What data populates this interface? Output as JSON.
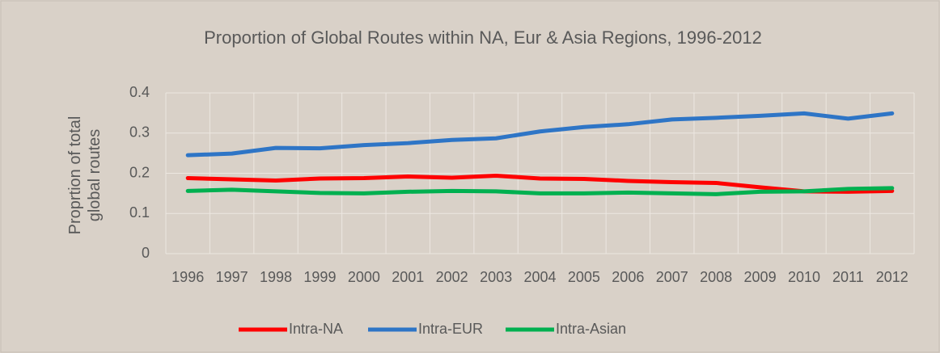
{
  "chart_data": {
    "type": "line",
    "title": "Proportion of Global Routes within NA, Eur & Asia Regions, 1996-2012",
    "y_label": "Proprtion of total global routes",
    "categories": [
      "1996",
      "1997",
      "1998",
      "1999",
      "2000",
      "2001",
      "2002",
      "2003",
      "2004",
      "2005",
      "2006",
      "2007",
      "2008",
      "2009",
      "2010",
      "2011",
      "2012"
    ],
    "series": [
      {
        "name": "Intra-NA",
        "color": "#ff0000",
        "values": [
          0.188,
          0.185,
          0.182,
          0.187,
          0.188,
          0.192,
          0.189,
          0.194,
          0.187,
          0.186,
          0.181,
          0.178,
          0.176,
          0.165,
          0.155,
          0.154,
          0.156
        ]
      },
      {
        "name": "Intra-EUR",
        "color": "#2e75c6",
        "values": [
          0.245,
          0.249,
          0.263,
          0.262,
          0.27,
          0.275,
          0.283,
          0.287,
          0.304,
          0.315,
          0.322,
          0.334,
          0.338,
          0.343,
          0.349,
          0.336,
          0.349
        ]
      },
      {
        "name": "Intra-Asian",
        "color": "#00b050",
        "values": [
          0.156,
          0.159,
          0.155,
          0.151,
          0.15,
          0.154,
          0.156,
          0.155,
          0.15,
          0.15,
          0.152,
          0.15,
          0.148,
          0.154,
          0.155,
          0.161,
          0.163
        ]
      }
    ],
    "ylim": [
      0,
      0.4
    ],
    "yticks": [
      0,
      0.1,
      0.2,
      0.3,
      0.4
    ],
    "grid": true,
    "legend": "bottom"
  }
}
